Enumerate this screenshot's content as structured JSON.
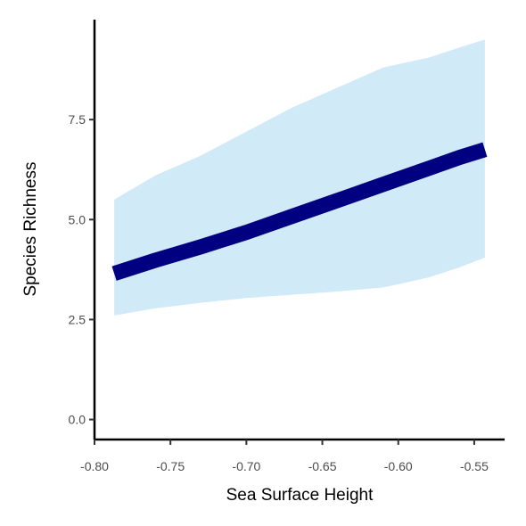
{
  "chart_data": {
    "type": "line",
    "title": "",
    "xlabel": "Sea Surface Height",
    "ylabel": "Species Richness",
    "xlim": [
      -0.8,
      -0.53
    ],
    "ylim": [
      -0.5,
      10.0
    ],
    "xticks": [
      -0.8,
      -0.75,
      -0.7,
      -0.65,
      -0.6,
      -0.55
    ],
    "xtick_labels": [
      "-0.80",
      "-0.75",
      "-0.70",
      "-0.65",
      "-0.60",
      "-0.55"
    ],
    "yticks": [
      0.0,
      2.5,
      5.0,
      7.5
    ],
    "ytick_labels": [
      "0.0",
      "2.5",
      "5.0",
      "7.5"
    ],
    "grid": false,
    "legend": "none",
    "colors": {
      "line": "#000080",
      "ribbon": "#d1eaf8",
      "axis": "#000000"
    },
    "series": [
      {
        "x": [
          -0.787,
          -0.76,
          -0.73,
          -0.7,
          -0.67,
          -0.64,
          -0.61,
          -0.58,
          -0.56,
          -0.543
        ],
        "y": [
          3.65,
          3.98,
          4.32,
          4.68,
          5.08,
          5.48,
          5.88,
          6.28,
          6.55,
          6.75
        ],
        "lower": [
          2.6,
          2.78,
          2.92,
          3.04,
          3.12,
          3.2,
          3.3,
          3.55,
          3.8,
          4.05
        ],
        "upper": [
          5.5,
          6.1,
          6.6,
          7.2,
          7.8,
          8.3,
          8.8,
          9.05,
          9.3,
          9.5
        ]
      }
    ]
  }
}
